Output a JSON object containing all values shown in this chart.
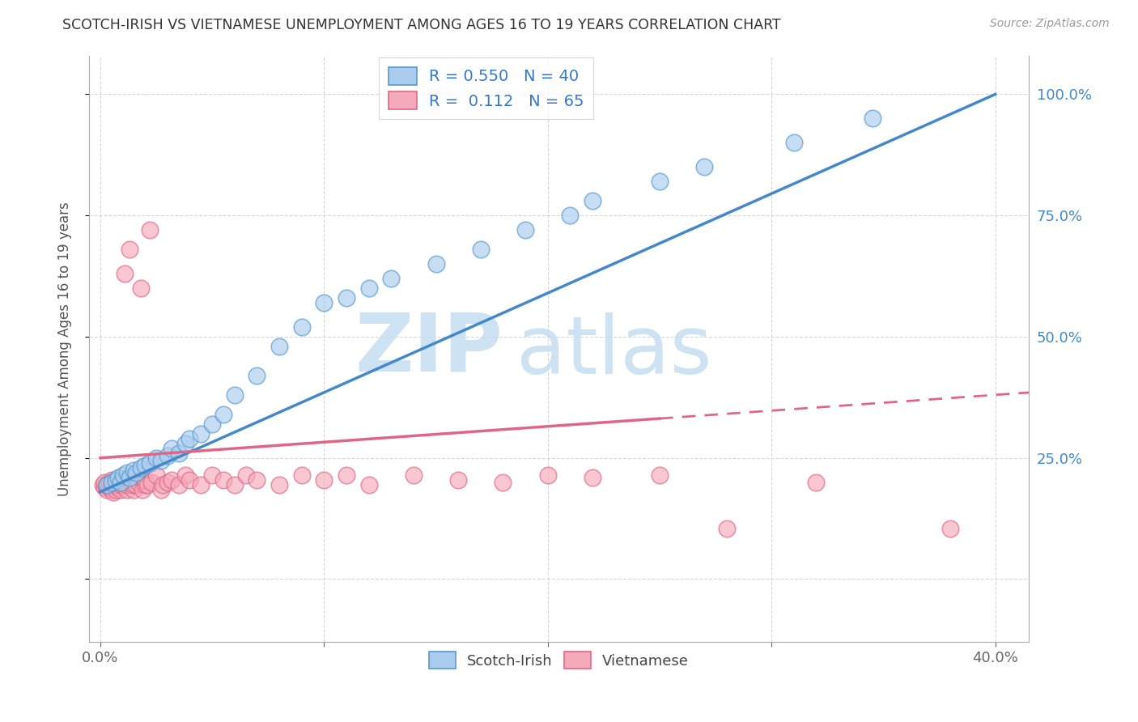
{
  "title": "SCOTCH-IRISH VS VIETNAMESE UNEMPLOYMENT AMONG AGES 16 TO 19 YEARS CORRELATION CHART",
  "source": "Source: ZipAtlas.com",
  "ylabel": "Unemployment Among Ages 16 to 19 years",
  "R_scotch": 0.55,
  "N_scotch": 40,
  "R_vietnamese": 0.112,
  "N_vietnamese": 65,
  "scotch_fill": "#aaccee",
  "scotch_edge": "#5599cc",
  "viet_fill": "#f5aabb",
  "viet_edge": "#e06688",
  "scotch_line_color": "#4488cc",
  "viet_line_color": "#e06688",
  "watermark_color": "#c5ddf0",
  "xlim": [
    -0.005,
    0.415
  ],
  "ylim": [
    -0.13,
    1.08
  ],
  "yticks": [
    0.0,
    0.25,
    0.5,
    0.75,
    1.0
  ],
  "ytick_labels": [
    "",
    "25.0%",
    "50.0%",
    "75.0%",
    "100.0%"
  ],
  "xticks": [
    0.0,
    0.1,
    0.2,
    0.3,
    0.4
  ],
  "xtick_labels": [
    "0.0%",
    "",
    "",
    "",
    "40.0%"
  ],
  "scotch_x": [
    0.003,
    0.005,
    0.007,
    0.008,
    0.009,
    0.01,
    0.012,
    0.013,
    0.015,
    0.016,
    0.018,
    0.02,
    0.022,
    0.025,
    0.027,
    0.03,
    0.032,
    0.035,
    0.038,
    0.04,
    0.045,
    0.05,
    0.055,
    0.06,
    0.07,
    0.08,
    0.09,
    0.1,
    0.11,
    0.12,
    0.13,
    0.15,
    0.17,
    0.19,
    0.21,
    0.22,
    0.25,
    0.27,
    0.31,
    0.345
  ],
  "scotch_y": [
    0.195,
    0.2,
    0.205,
    0.21,
    0.2,
    0.215,
    0.22,
    0.21,
    0.225,
    0.22,
    0.23,
    0.235,
    0.24,
    0.25,
    0.245,
    0.255,
    0.27,
    0.26,
    0.28,
    0.29,
    0.3,
    0.32,
    0.34,
    0.38,
    0.42,
    0.48,
    0.52,
    0.57,
    0.58,
    0.6,
    0.62,
    0.65,
    0.68,
    0.72,
    0.75,
    0.78,
    0.82,
    0.85,
    0.9,
    0.95
  ],
  "viet_x": [
    0.001,
    0.002,
    0.002,
    0.003,
    0.003,
    0.004,
    0.004,
    0.005,
    0.005,
    0.005,
    0.006,
    0.006,
    0.007,
    0.007,
    0.008,
    0.008,
    0.009,
    0.009,
    0.01,
    0.01,
    0.01,
    0.011,
    0.012,
    0.012,
    0.013,
    0.014,
    0.015,
    0.015,
    0.016,
    0.017,
    0.018,
    0.019,
    0.02,
    0.02,
    0.021,
    0.022,
    0.023,
    0.025,
    0.027,
    0.028,
    0.03,
    0.032,
    0.035,
    0.038,
    0.04,
    0.045,
    0.05,
    0.055,
    0.06,
    0.065,
    0.07,
    0.08,
    0.09,
    0.1,
    0.11,
    0.12,
    0.14,
    0.16,
    0.18,
    0.2,
    0.22,
    0.25,
    0.28,
    0.32,
    0.38
  ],
  "viet_y": [
    0.195,
    0.19,
    0.2,
    0.185,
    0.195,
    0.19,
    0.2,
    0.185,
    0.195,
    0.205,
    0.18,
    0.195,
    0.185,
    0.2,
    0.19,
    0.195,
    0.185,
    0.195,
    0.195,
    0.2,
    0.205,
    0.63,
    0.185,
    0.195,
    0.68,
    0.195,
    0.185,
    0.195,
    0.195,
    0.2,
    0.6,
    0.185,
    0.195,
    0.205,
    0.195,
    0.72,
    0.2,
    0.215,
    0.185,
    0.195,
    0.2,
    0.205,
    0.195,
    0.215,
    0.205,
    0.195,
    0.215,
    0.205,
    0.195,
    0.215,
    0.205,
    0.195,
    0.215,
    0.205,
    0.215,
    0.195,
    0.215,
    0.205,
    0.2,
    0.215,
    0.21,
    0.215,
    0.105,
    0.2,
    0.105
  ]
}
